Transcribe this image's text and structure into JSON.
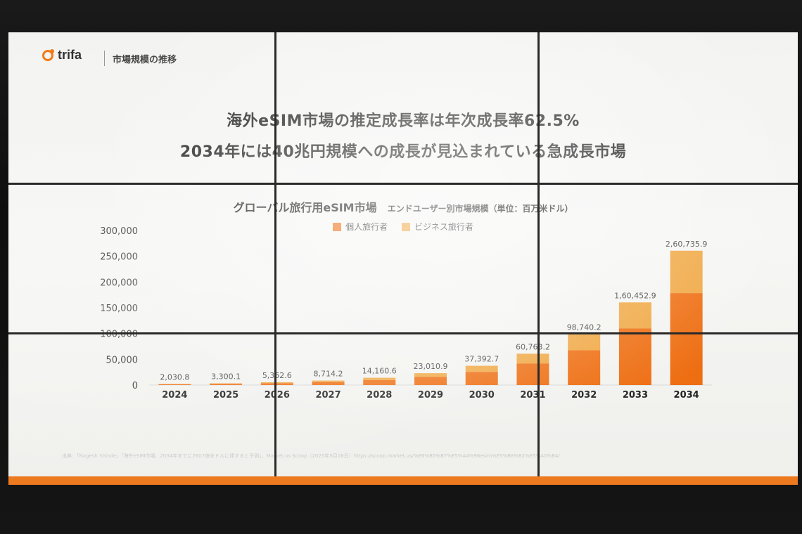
{
  "header": {
    "logo_text": "trifa",
    "section_label": "市場規模の推移"
  },
  "headline": {
    "line1": "海外eSIM市場の推定成長率は年次成長率62.5%",
    "line2": "2034年には40兆円規模への成長が見込まれている急成長市場"
  },
  "colors": {
    "personal": "#ee6e12",
    "business": "#f0a742",
    "accent_bar": "#ee7a1f"
  },
  "footnote": "出典：「Nagesh Shinde」「海外eSIM市場、2034年までに2607億米ドルに達すると予測」、Market.us Scoop（2025年5月16日）https://scoop.market.us/%E6%B5%B7%E5%A4%96esim%E5%B8%82%E5%A0%B4/",
  "chart_data": {
    "type": "bar",
    "stacked": true,
    "title": "グローバル旅行用eSIM市場",
    "subtitle": "エンドユーザー別市場規模（単位：百万米ドル）",
    "categories": [
      "2024",
      "2025",
      "2026",
      "2027",
      "2028",
      "2029",
      "2030",
      "2031",
      "2032",
      "2033",
      "2034"
    ],
    "series": [
      {
        "name": "個人旅行者",
        "values": [
          1400,
          2300,
          3700,
          5900,
          9700,
          15800,
          25600,
          41600,
          67600,
          109800,
          178500
        ]
      },
      {
        "name": "ビジネス旅行者",
        "values": [
          630.8,
          1000.1,
          1662.6,
          2814.2,
          4460.6,
          7210.9,
          11792.7,
          19163.2,
          31140.2,
          50652.9,
          82235.9
        ]
      }
    ],
    "totals_labels": [
      "2,030.8",
      "3,300.1",
      "5,362.6",
      "8,714.2",
      "14,160.6",
      "23,010.9",
      "37,392.7",
      "60,763.2",
      "98,740.2",
      "1,60,452.9",
      "2,60,735.9"
    ],
    "yticks": [
      "0",
      "50,000",
      "100,000",
      "150,000",
      "200,000",
      "250,000",
      "300,000"
    ],
    "ylim": [
      0,
      300000
    ],
    "legend_position": "top-center",
    "grid": false
  }
}
